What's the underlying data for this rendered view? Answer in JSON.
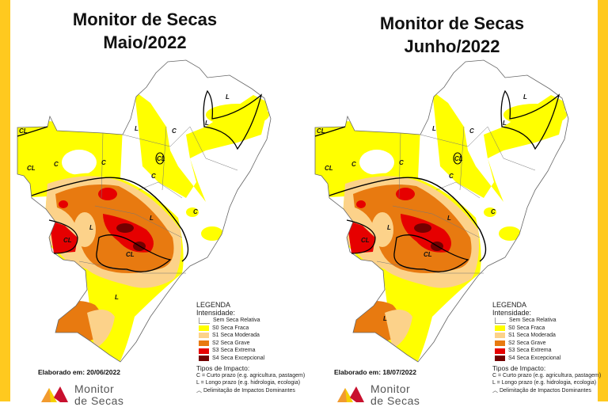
{
  "colors": {
    "border": "#FFC91F",
    "none": "#FFFFFF",
    "s0": "#FFFF00",
    "s1": "#FCD28A",
    "s2": "#E87A10",
    "s3": "#E60000",
    "s4": "#730000"
  },
  "panels": [
    {
      "title_line1": "Monitor de Secas",
      "title_line2": "Maio/2022",
      "elaborado": "Elaborado em: 20/06/2022",
      "labels": [
        "CL",
        "CL",
        "C",
        "C",
        "L",
        "L",
        "C",
        "CL",
        "L",
        "C",
        "L",
        "C",
        "CL",
        "CL",
        "L",
        "L"
      ]
    },
    {
      "title_line1": "Monitor de Secas",
      "title_line2": "Junho/2022",
      "elaborado": "Elaborado em: 18/07/2022",
      "labels": [
        "CL",
        "CL",
        "C",
        "C",
        "L",
        "L",
        "C",
        "CL",
        "L",
        "C",
        "L",
        "C",
        "CL",
        "CL",
        "L",
        "L"
      ]
    }
  ],
  "legend": {
    "title": "LEGENDA",
    "intensity_title": "Intensidade:",
    "items": [
      {
        "label": "Sem Seca Relativa",
        "color": "#FFFFFF"
      },
      {
        "label": "S0 Seca Fraca",
        "color": "#FFFF00"
      },
      {
        "label": "S1 Seca Moderada",
        "color": "#FCD28A"
      },
      {
        "label": "S2 Seca Grave",
        "color": "#E87A10"
      },
      {
        "label": "S3 Seca Extrema",
        "color": "#E60000"
      },
      {
        "label": "S4 Seca Excepcional",
        "color": "#730000"
      }
    ],
    "impact_title": "Tipos de Impacto:",
    "impact_c": "C = Curto prazo (e.g. agricultura, pastagem)",
    "impact_l": "L = Longo prazo (e.g. hidrologia, ecologia)",
    "impact_line": "Delimitação de Impactos Dominantes"
  },
  "logo": {
    "line1": "Monitor",
    "line2": "de Secas"
  }
}
